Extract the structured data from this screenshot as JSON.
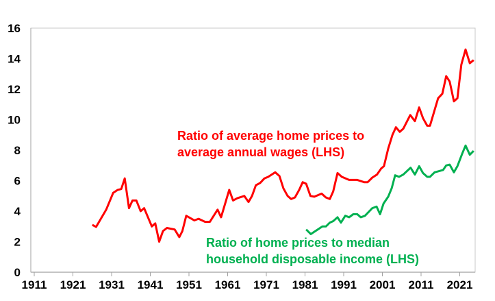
{
  "chart_data": {
    "type": "line",
    "title": "",
    "xlabel": "",
    "ylabel": "",
    "xlim": [
      1910,
      2025
    ],
    "ylim": [
      0,
      16
    ],
    "grid": false,
    "x_ticks": [
      "1911",
      "1921",
      "1931",
      "1941",
      "1951",
      "1961",
      "1971",
      "1981",
      "1991",
      "2001",
      "2011",
      "2021"
    ],
    "y_ticks": [
      "0",
      "2",
      "4",
      "6",
      "8",
      "10",
      "12",
      "14",
      "16"
    ],
    "series": [
      {
        "name": "Ratio of average home prices to average annual wages (LHS)",
        "label_lines": [
          "Ratio of average home prices to",
          "average annual wages (LHS)"
        ],
        "color": "#ff0000",
        "x": [
          1926,
          1927,
          1929.6,
          1931.4,
          1932.6,
          1933.5,
          1934.4,
          1935.5,
          1936.4,
          1937.4,
          1938.5,
          1939.4,
          1941.4,
          1942.3,
          1943.3,
          1944.3,
          1945.3,
          1947.3,
          1948.5,
          1949.3,
          1950.3,
          1952.4,
          1953.5,
          1955.2,
          1956.4,
          1958.4,
          1959.3,
          1961.4,
          1962.4,
          1963.5,
          1965.3,
          1966.4,
          1967.3,
          1968.3,
          1969.4,
          1970.5,
          1971.5,
          1973.3,
          1974.4,
          1975.4,
          1976.5,
          1977.4,
          1978.4,
          1979.5,
          1980.4,
          1981.3,
          1982.4,
          1983.4,
          1985.3,
          1986.4,
          1987.4,
          1988.3,
          1989.4,
          1990.5,
          1992.4,
          1994.5,
          1996.3,
          1997.2,
          1998.4,
          1999.6,
          2000.7,
          2001.4,
          2002.5,
          2003.6,
          2004.5,
          2005.5,
          2006.4,
          2008.2,
          2009.4,
          2010.5,
          2011.5,
          2012.6,
          2013.3,
          2015.4,
          2016.5,
          2017.5,
          2018.4,
          2019.5,
          2020.4,
          2021.4,
          2022.5,
          2023.6,
          2024.6
        ],
        "y": [
          3.1,
          2.97,
          4.1,
          5.2,
          5.4,
          5.45,
          6.15,
          4.2,
          4.7,
          4.7,
          4.0,
          4.2,
          3.0,
          3.2,
          2.0,
          2.7,
          2.9,
          2.8,
          2.3,
          2.7,
          3.7,
          3.4,
          3.5,
          3.3,
          3.3,
          4.1,
          3.6,
          5.4,
          4.7,
          4.85,
          5.0,
          4.6,
          5.0,
          5.7,
          5.85,
          6.15,
          6.25,
          6.55,
          6.3,
          5.5,
          5.0,
          4.8,
          4.9,
          5.4,
          5.9,
          5.8,
          5.0,
          4.95,
          5.15,
          4.9,
          4.8,
          5.3,
          6.5,
          6.25,
          6.05,
          6.05,
          5.9,
          5.9,
          6.2,
          6.4,
          6.8,
          6.95,
          8.1,
          9.0,
          9.5,
          9.2,
          9.4,
          10.3,
          9.9,
          10.8,
          10.1,
          9.6,
          9.6,
          11.4,
          11.7,
          12.85,
          12.5,
          11.2,
          11.4,
          13.6,
          14.6,
          13.7,
          13.9
        ]
      },
      {
        "name": "Ratio of home prices to median household disposable income (LHS)",
        "label_lines": [
          "Ratio of home prices to median",
          "household disposable income (LHS)"
        ],
        "color": "#00b050",
        "x": [
          1981.3,
          1982.5,
          1984.3,
          1985.5,
          1986.4,
          1987.4,
          1988.3,
          1989.4,
          1990.3,
          1991.4,
          1992.4,
          1993.5,
          1994.5,
          1995.4,
          1996.5,
          1998.4,
          1999.5,
          2000.4,
          2001.3,
          2002.5,
          2003.4,
          2004.3,
          2005.3,
          2006.4,
          2008.3,
          2009.4,
          2010.5,
          2011.5,
          2012.6,
          2013.3,
          2014.5,
          2016.7,
          2017.5,
          2018.4,
          2019.5,
          2020.4,
          2021.6,
          2022.5,
          2023.6,
          2024.6
        ],
        "y": [
          2.8,
          2.5,
          2.8,
          3.0,
          3.0,
          3.25,
          3.35,
          3.6,
          3.25,
          3.7,
          3.6,
          3.8,
          3.8,
          3.6,
          3.7,
          4.2,
          4.3,
          3.8,
          4.5,
          4.95,
          5.5,
          6.35,
          6.25,
          6.4,
          6.85,
          6.4,
          6.95,
          6.5,
          6.25,
          6.25,
          6.55,
          6.7,
          7.0,
          7.05,
          6.55,
          6.95,
          7.75,
          8.3,
          7.7,
          7.95
        ]
      }
    ]
  }
}
